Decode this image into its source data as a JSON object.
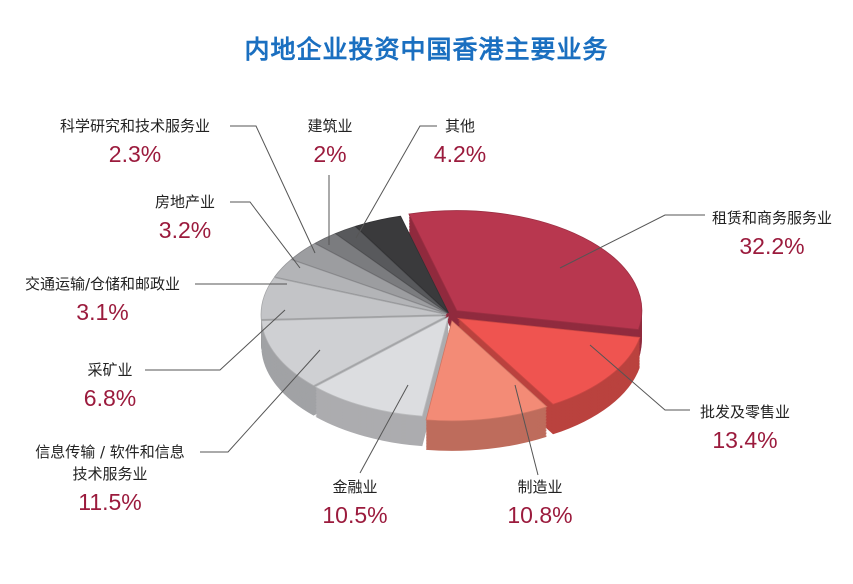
{
  "chart_data": {
    "type": "pie",
    "title": "内地企业投资中国香港主要业务",
    "three_d": true,
    "exploded": true,
    "slices": [
      {
        "label": "租赁和商务服务业",
        "value": 32.2,
        "display": "32.2%",
        "color": "#b8374f"
      },
      {
        "label": "批发及零售业",
        "value": 13.4,
        "display": "13.4%",
        "color": "#ef5450"
      },
      {
        "label": "制造业",
        "value": 10.8,
        "display": "10.8%",
        "color": "#f38b76"
      },
      {
        "label": "金融业",
        "value": 10.5,
        "display": "10.5%",
        "color": "#dcdde0"
      },
      {
        "label": "信息传输 / 软件和信息技术服务业",
        "value": 11.5,
        "display": "11.5%",
        "color": "#cfd0d3"
      },
      {
        "label": "采矿业",
        "value": 6.8,
        "display": "6.8%",
        "color": "#c3c4c7"
      },
      {
        "label": "交通运输/仓储和邮政业",
        "value": 3.1,
        "display": "3.1%",
        "color": "#b3b4b7"
      },
      {
        "label": "房地产业",
        "value": 3.2,
        "display": "3.2%",
        "color": "#9c9da0"
      },
      {
        "label": "科学研究和技术服务业",
        "value": 2.3,
        "display": "2.3%",
        "color": "#7b7c7f"
      },
      {
        "label": "建筑业",
        "value": 2,
        "display": "2%",
        "color": "#58595c"
      },
      {
        "label": "其他",
        "value": 4.2,
        "display": "4.2%",
        "color": "#3a3a3c"
      }
    ]
  }
}
